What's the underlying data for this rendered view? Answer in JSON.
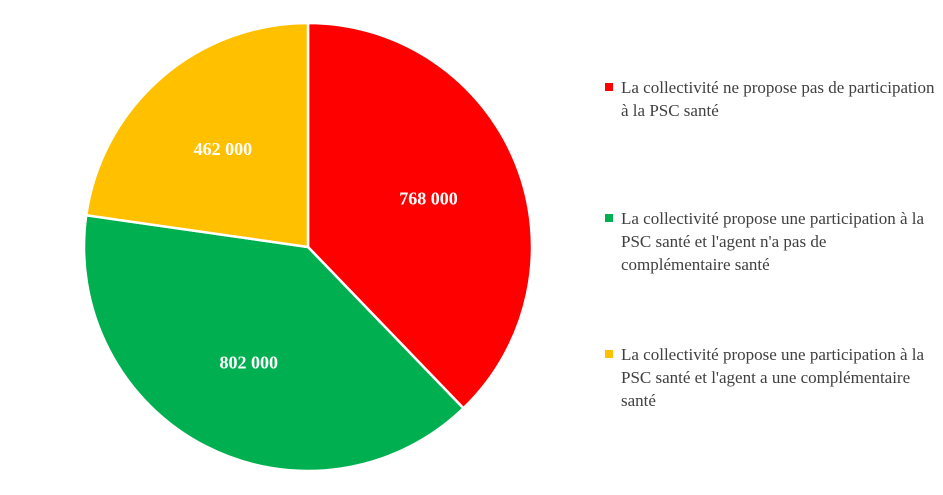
{
  "chart_data": {
    "type": "pie",
    "title": "",
    "slices": [
      {
        "label": "La collectivité ne propose pas de participation à la PSC santé",
        "value": 768000,
        "display": "768 000",
        "color": "#ff0000"
      },
      {
        "label": "La collectivité propose une participation à la PSC santé et l'agent n'a pas de complémentaire santé",
        "value": 802000,
        "display": "802 000",
        "color": "#00b050"
      },
      {
        "label": "La collectivité propose une participation à la PSC santé et l'agent a une complémentaire santé",
        "value": 462000,
        "display": "462 000",
        "color": "#ffc000"
      }
    ],
    "legend_position": "right",
    "start_angle": "top, clockwise"
  }
}
